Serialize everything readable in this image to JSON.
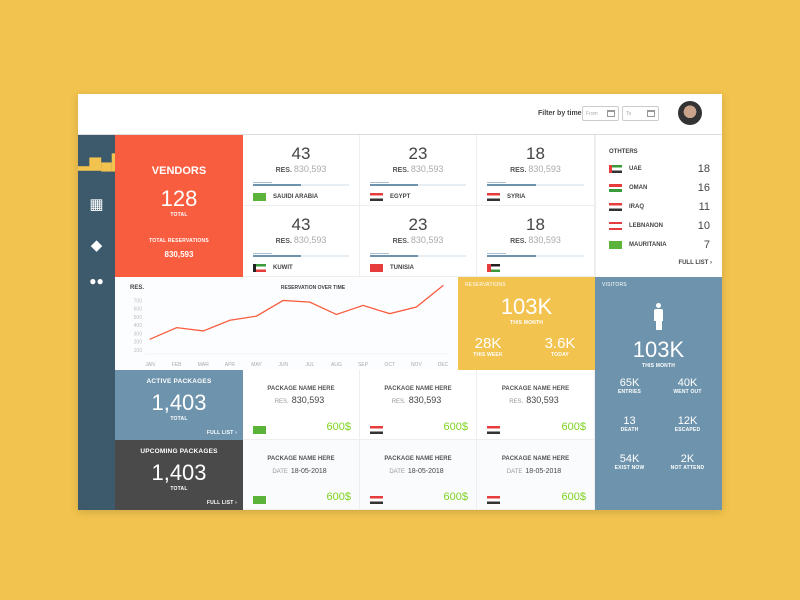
{
  "header": {
    "filter_label": "Filter by time",
    "from_placeholder": "From",
    "to_placeholder": "To"
  },
  "sidebar": {
    "items": [
      {
        "icon": "bar-chart-icon",
        "active": true
      },
      {
        "icon": "buildings-icon"
      },
      {
        "icon": "tag-icon"
      },
      {
        "icon": "users-icon"
      }
    ]
  },
  "vendors": {
    "title": "VENDORS",
    "count": "128",
    "count_label": "TOTAL",
    "res_label": "TOTAL RESERVATIONS",
    "res_value": "830,593",
    "color": "#f95d3f"
  },
  "countries": [
    {
      "count": "43",
      "res_label": "RES.",
      "res": "830,593",
      "name": "SAUIDI ARABIA",
      "flag": "sa"
    },
    {
      "count": "23",
      "res_label": "RES.",
      "res": "830,593",
      "name": "EGYPT",
      "flag": "eg"
    },
    {
      "count": "18",
      "res_label": "RES.",
      "res": "830,593",
      "name": "SYRIA",
      "flag": "sy"
    },
    {
      "count": "43",
      "res_label": "RES.",
      "res": "830,593",
      "name": "KUWIT",
      "flag": "kw"
    },
    {
      "count": "23",
      "res_label": "RES.",
      "res": "830,593",
      "name": "TUNISIA",
      "flag": "tn"
    },
    {
      "count": "18",
      "res_label": "RES.",
      "res": "830,593",
      "name": "",
      "flag": "jo"
    }
  ],
  "others": {
    "title": "OTHTERS",
    "items": [
      {
        "name": "UAE",
        "value": "18",
        "flag": "ae"
      },
      {
        "name": "OMAN",
        "value": "16",
        "flag": "om"
      },
      {
        "name": "IRAQ",
        "value": "11",
        "flag": "iq"
      },
      {
        "name": "LEBNANON",
        "value": "10",
        "flag": "lb"
      },
      {
        "name": "MAURITANIA",
        "value": "7",
        "flag": "mr"
      }
    ],
    "full_list": "FULL LIST"
  },
  "chart_data": {
    "type": "line",
    "title": "RESERVATION OVER TIME",
    "ylabel": "RES.",
    "categories": [
      "JAN",
      "FEB",
      "MAR",
      "APR",
      "MAY",
      "JUN",
      "JUL",
      "AUG",
      "SEP",
      "OCT",
      "NOV",
      "DEC"
    ],
    "values": [
      230,
      370,
      330,
      460,
      510,
      700,
      680,
      530,
      640,
      540,
      620,
      880
    ],
    "yticks": [
      100,
      200,
      300,
      400,
      500,
      600,
      700
    ],
    "ylim": [
      50,
      900
    ],
    "color": "#f95d3f",
    "grid": false
  },
  "reservations": {
    "title": "RESERVATIONS",
    "month": "103K",
    "month_label": "THIS MONTH",
    "week": "28K",
    "week_label": "THIS WEEK",
    "today": "3.6K",
    "today_label": "TODAY",
    "color": "#f2c34e"
  },
  "visitors": {
    "title": "VISITORS",
    "month": "103K",
    "month_label": "THIS MONTH",
    "stats": [
      {
        "v": "65K",
        "l": "ENTRIES"
      },
      {
        "v": "40K",
        "l": "WENT OUT"
      },
      {
        "v": "13",
        "l": "DEATH"
      },
      {
        "v": "12K",
        "l": "ESCAPED"
      },
      {
        "v": "54K",
        "l": "EXIST NOW"
      },
      {
        "v": "2K",
        "l": "NOT ATTEND"
      }
    ],
    "color": "#6e94ad"
  },
  "active_packages": {
    "title": "ACTIVE PACKAGES",
    "count": "1,403",
    "count_label": "TOTAL",
    "full_list": "FULL LIST",
    "items": [
      {
        "name": "PACKAGE NAME HERE",
        "label": "RES.",
        "value": "830,593",
        "price": "600$",
        "flag": "sa"
      },
      {
        "name": "PACKAGE NAME HERE",
        "label": "RES.",
        "value": "830,593",
        "price": "600$",
        "flag": "eg"
      },
      {
        "name": "PACKAGE NAME HERE",
        "label": "RES.",
        "value": "830,593",
        "price": "600$",
        "flag": "sy"
      }
    ]
  },
  "upcoming_packages": {
    "title": "UPCOMING PACKAGES",
    "count": "1,403",
    "count_label": "TOTAL",
    "full_list": "FULL LIST",
    "items": [
      {
        "name": "PACKAGE NAME HERE",
        "label": "DATE",
        "value": "18-05-2018",
        "price": "600$",
        "flag": "sa"
      },
      {
        "name": "PACKAGE NAME HERE",
        "label": "DATE",
        "value": "18-05-2018",
        "price": "600$",
        "flag": "eg"
      },
      {
        "name": "PACKAGE NAME HERE",
        "label": "DATE",
        "value": "18-05-2018",
        "price": "600$",
        "flag": "sy"
      }
    ]
  }
}
